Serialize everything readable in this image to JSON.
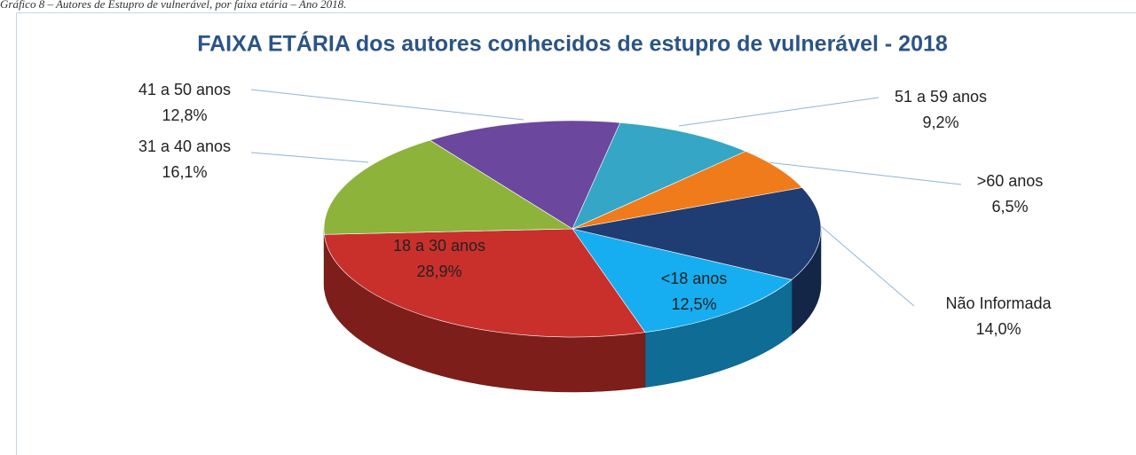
{
  "caption": "Gráfico 8 – Autores de Estupro de vulnerável, por faixa etária – Ano 2018.",
  "chart_data": {
    "type": "pie3d",
    "title": "FAIXA ETÁRIA dos autores conhecidos de estupro de vulnerável - 2018",
    "categories": [
      "<18 anos",
      "18 a 30 anos",
      "31 a 40 anos",
      "41 a 50 anos",
      "51 a 59 anos",
      ">60 anos",
      "Não Informada"
    ],
    "values": [
      12.5,
      28.9,
      16.1,
      12.8,
      9.2,
      6.5,
      14.0
    ],
    "value_labels": [
      "12,5%",
      "28,9%",
      "16,1%",
      "12,8%",
      "9,2%",
      "6,5%",
      "14,0%"
    ],
    "colors": [
      "#16aef0",
      "#c9302c",
      "#8db33a",
      "#6b479e",
      "#35a6c6",
      "#f07b1b",
      "#1f3d73"
    ]
  }
}
